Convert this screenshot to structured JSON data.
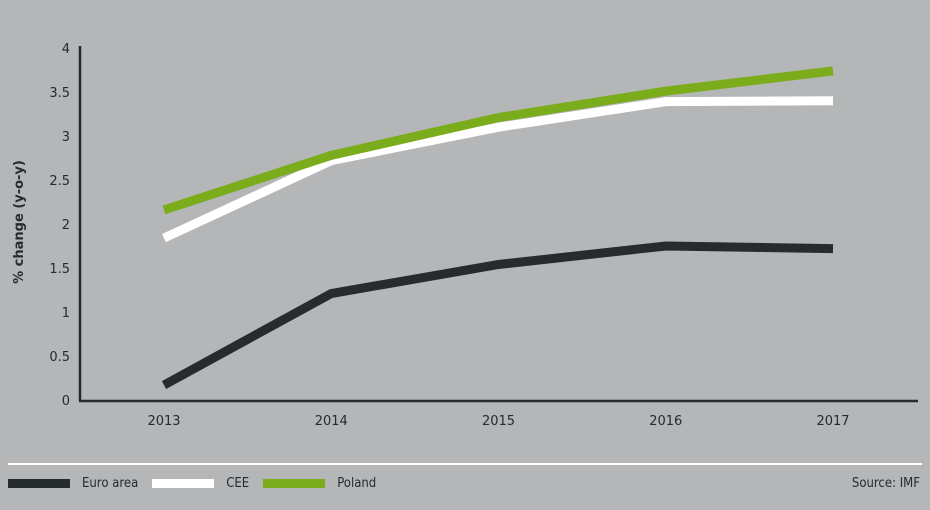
{
  "chart_data": {
    "type": "line",
    "title": "",
    "xlabel": "",
    "ylabel": "% change (y-o-y)",
    "x": [
      "2013",
      "2014",
      "2015",
      "2016",
      "2017"
    ],
    "ylim": [
      0,
      4
    ],
    "yticks": [
      "0",
      "0.5",
      "1",
      "1.5",
      "2",
      "2.5",
      "3",
      "3.5",
      "4"
    ],
    "grid": false,
    "legend_position": "bottom-left",
    "series": [
      {
        "name": "Euro area",
        "color": "#262b2d",
        "values": [
          0.17,
          1.21,
          1.54,
          1.75,
          1.72
        ]
      },
      {
        "name": "CEE",
        "color": "#ffffff",
        "values": [
          1.84,
          2.72,
          3.1,
          3.39,
          3.4
        ]
      },
      {
        "name": "Poland",
        "color": "#7bac1c",
        "values": [
          2.16,
          2.78,
          3.21,
          3.51,
          3.74
        ]
      }
    ],
    "source": "Source: IMF"
  }
}
